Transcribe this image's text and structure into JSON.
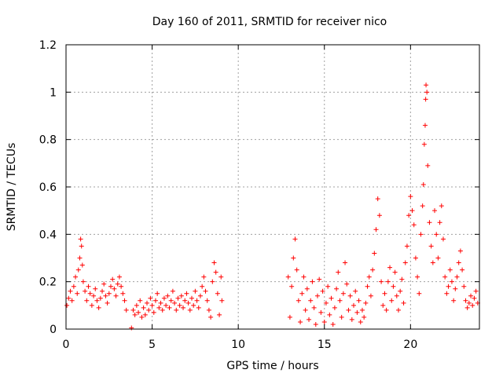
{
  "chart_data": {
    "type": "scatter",
    "title": "Day 160 of 2011, SRMTID for receiver nico",
    "xlabel": "GPS time / hours",
    "ylabel": "SRMTID / TECUs",
    "xlim": [
      0,
      24
    ],
    "ylim": [
      0,
      1.2
    ],
    "xticks": [
      0,
      5,
      10,
      15,
      20
    ],
    "xtick_labels": [
      "0",
      "5",
      "10",
      "15",
      "20"
    ],
    "yticks": [
      0,
      0.2,
      0.4,
      0.6,
      0.8,
      1.0,
      1.2
    ],
    "ytick_labels": [
      "0",
      "0.2",
      "0.4",
      "0.6",
      "0.8",
      "1",
      "1.2"
    ],
    "grid": true,
    "marker": "+",
    "color": "#ff0000",
    "series": [
      {
        "name": "SRMTID",
        "points": [
          [
            0.05,
            0.1
          ],
          [
            0.15,
            0.13
          ],
          [
            0.25,
            0.16
          ],
          [
            0.35,
            0.12
          ],
          [
            0.45,
            0.18
          ],
          [
            0.55,
            0.22
          ],
          [
            0.65,
            0.15
          ],
          [
            0.72,
            0.25
          ],
          [
            0.8,
            0.3
          ],
          [
            0.85,
            0.38
          ],
          [
            0.9,
            0.35
          ],
          [
            0.95,
            0.27
          ],
          [
            1.0,
            0.2
          ],
          [
            1.1,
            0.16
          ],
          [
            1.2,
            0.12
          ],
          [
            1.3,
            0.18
          ],
          [
            1.4,
            0.15
          ],
          [
            1.5,
            0.1
          ],
          [
            1.6,
            0.14
          ],
          [
            1.7,
            0.17
          ],
          [
            1.8,
            0.12
          ],
          [
            1.9,
            0.09
          ],
          [
            2.0,
            0.13
          ],
          [
            2.1,
            0.16
          ],
          [
            2.2,
            0.19
          ],
          [
            2.3,
            0.14
          ],
          [
            2.4,
            0.11
          ],
          [
            2.5,
            0.15
          ],
          [
            2.6,
            0.18
          ],
          [
            2.7,
            0.21
          ],
          [
            2.8,
            0.17
          ],
          [
            2.9,
            0.14
          ],
          [
            3.0,
            0.19
          ],
          [
            3.1,
            0.22
          ],
          [
            3.2,
            0.18
          ],
          [
            3.3,
            0.15
          ],
          [
            3.4,
            0.12
          ],
          [
            3.5,
            0.08
          ],
          [
            3.8,
            0.005
          ],
          [
            3.9,
            0.08
          ],
          [
            4.0,
            0.06
          ],
          [
            4.1,
            0.1
          ],
          [
            4.2,
            0.07
          ],
          [
            4.3,
            0.12
          ],
          [
            4.4,
            0.05
          ],
          [
            4.5,
            0.09
          ],
          [
            4.6,
            0.06
          ],
          [
            4.7,
            0.11
          ],
          [
            4.8,
            0.08
          ],
          [
            4.9,
            0.13
          ],
          [
            5.0,
            0.1
          ],
          [
            5.1,
            0.07
          ],
          [
            5.2,
            0.12
          ],
          [
            5.3,
            0.15
          ],
          [
            5.4,
            0.09
          ],
          [
            5.5,
            0.11
          ],
          [
            5.6,
            0.08
          ],
          [
            5.7,
            0.13
          ],
          [
            5.8,
            0.1
          ],
          [
            5.9,
            0.14
          ],
          [
            6.0,
            0.09
          ],
          [
            6.1,
            0.12
          ],
          [
            6.2,
            0.16
          ],
          [
            6.3,
            0.11
          ],
          [
            6.4,
            0.08
          ],
          [
            6.5,
            0.13
          ],
          [
            6.6,
            0.1
          ],
          [
            6.7,
            0.14
          ],
          [
            6.8,
            0.09
          ],
          [
            6.9,
            0.12
          ],
          [
            7.0,
            0.15
          ],
          [
            7.1,
            0.11
          ],
          [
            7.2,
            0.08
          ],
          [
            7.3,
            0.13
          ],
          [
            7.4,
            0.1
          ],
          [
            7.5,
            0.16
          ],
          [
            7.6,
            0.12
          ],
          [
            7.7,
            0.09
          ],
          [
            7.8,
            0.14
          ],
          [
            7.9,
            0.18
          ],
          [
            8.0,
            0.22
          ],
          [
            8.1,
            0.16
          ],
          [
            8.2,
            0.12
          ],
          [
            8.3,
            0.08
          ],
          [
            8.4,
            0.05
          ],
          [
            8.5,
            0.2
          ],
          [
            8.6,
            0.28
          ],
          [
            8.7,
            0.24
          ],
          [
            8.8,
            0.15
          ],
          [
            8.9,
            0.06
          ],
          [
            9.0,
            0.22
          ],
          [
            9.05,
            0.12
          ],
          [
            12.9,
            0.22
          ],
          [
            13.0,
            0.05
          ],
          [
            13.1,
            0.18
          ],
          [
            13.2,
            0.3
          ],
          [
            13.3,
            0.38
          ],
          [
            13.4,
            0.25
          ],
          [
            13.5,
            0.12
          ],
          [
            13.6,
            0.03
          ],
          [
            13.7,
            0.15
          ],
          [
            13.8,
            0.22
          ],
          [
            13.9,
            0.08
          ],
          [
            14.0,
            0.17
          ],
          [
            14.1,
            0.04
          ],
          [
            14.2,
            0.12
          ],
          [
            14.3,
            0.2
          ],
          [
            14.4,
            0.09
          ],
          [
            14.5,
            0.02
          ],
          [
            14.6,
            0.14
          ],
          [
            14.7,
            0.21
          ],
          [
            14.8,
            0.07
          ],
          [
            14.9,
            0.16
          ],
          [
            15.0,
            0.03
          ],
          [
            15.1,
            0.11
          ],
          [
            15.2,
            0.18
          ],
          [
            15.3,
            0.06
          ],
          [
            15.4,
            0.13
          ],
          [
            15.5,
            0.02
          ],
          [
            15.6,
            0.09
          ],
          [
            15.7,
            0.17
          ],
          [
            15.8,
            0.24
          ],
          [
            15.9,
            0.12
          ],
          [
            16.0,
            0.05
          ],
          [
            16.1,
            0.15
          ],
          [
            16.2,
            0.28
          ],
          [
            16.3,
            0.19
          ],
          [
            16.4,
            0.08
          ],
          [
            16.5,
            0.14
          ],
          [
            16.6,
            0.04
          ],
          [
            16.7,
            0.1
          ],
          [
            16.8,
            0.16
          ],
          [
            16.9,
            0.07
          ],
          [
            17.0,
            0.12
          ],
          [
            17.1,
            0.03
          ],
          [
            17.2,
            0.08
          ],
          [
            17.3,
            0.05
          ],
          [
            17.4,
            0.11
          ],
          [
            17.5,
            0.18
          ],
          [
            17.6,
            0.22
          ],
          [
            17.7,
            0.14
          ],
          [
            17.8,
            0.25
          ],
          [
            17.9,
            0.32
          ],
          [
            18.0,
            0.42
          ],
          [
            18.1,
            0.55
          ],
          [
            18.2,
            0.48
          ],
          [
            18.3,
            0.2
          ],
          [
            18.4,
            0.1
          ],
          [
            18.5,
            0.15
          ],
          [
            18.6,
            0.08
          ],
          [
            18.7,
            0.2
          ],
          [
            18.8,
            0.26
          ],
          [
            18.9,
            0.12
          ],
          [
            19.0,
            0.18
          ],
          [
            19.1,
            0.24
          ],
          [
            19.2,
            0.14
          ],
          [
            19.3,
            0.08
          ],
          [
            19.4,
            0.16
          ],
          [
            19.5,
            0.21
          ],
          [
            19.6,
            0.11
          ],
          [
            19.7,
            0.28
          ],
          [
            19.8,
            0.35
          ],
          [
            19.9,
            0.48
          ],
          [
            20.0,
            0.56
          ],
          [
            20.1,
            0.5
          ],
          [
            20.2,
            0.44
          ],
          [
            20.3,
            0.3
          ],
          [
            20.4,
            0.22
          ],
          [
            20.5,
            0.15
          ],
          [
            20.6,
            0.4
          ],
          [
            20.7,
            0.52
          ],
          [
            20.75,
            0.61
          ],
          [
            20.8,
            0.78
          ],
          [
            20.85,
            0.86
          ],
          [
            20.88,
            0.97
          ],
          [
            20.9,
            1.03
          ],
          [
            20.95,
            1.0
          ],
          [
            21.0,
            0.69
          ],
          [
            21.1,
            0.45
          ],
          [
            21.2,
            0.35
          ],
          [
            21.3,
            0.28
          ],
          [
            21.4,
            0.5
          ],
          [
            21.5,
            0.4
          ],
          [
            21.6,
            0.3
          ],
          [
            21.7,
            0.45
          ],
          [
            21.8,
            0.52
          ],
          [
            21.9,
            0.38
          ],
          [
            22.0,
            0.22
          ],
          [
            22.1,
            0.15
          ],
          [
            22.2,
            0.18
          ],
          [
            22.3,
            0.25
          ],
          [
            22.4,
            0.2
          ],
          [
            22.5,
            0.12
          ],
          [
            22.6,
            0.17
          ],
          [
            22.7,
            0.22
          ],
          [
            22.8,
            0.28
          ],
          [
            22.9,
            0.33
          ],
          [
            23.0,
            0.25
          ],
          [
            23.1,
            0.18
          ],
          [
            23.2,
            0.12
          ],
          [
            23.3,
            0.09
          ],
          [
            23.4,
            0.11
          ],
          [
            23.5,
            0.14
          ],
          [
            23.6,
            0.1
          ],
          [
            23.7,
            0.13
          ],
          [
            23.8,
            0.16
          ],
          [
            23.9,
            0.11
          ]
        ]
      }
    ]
  }
}
